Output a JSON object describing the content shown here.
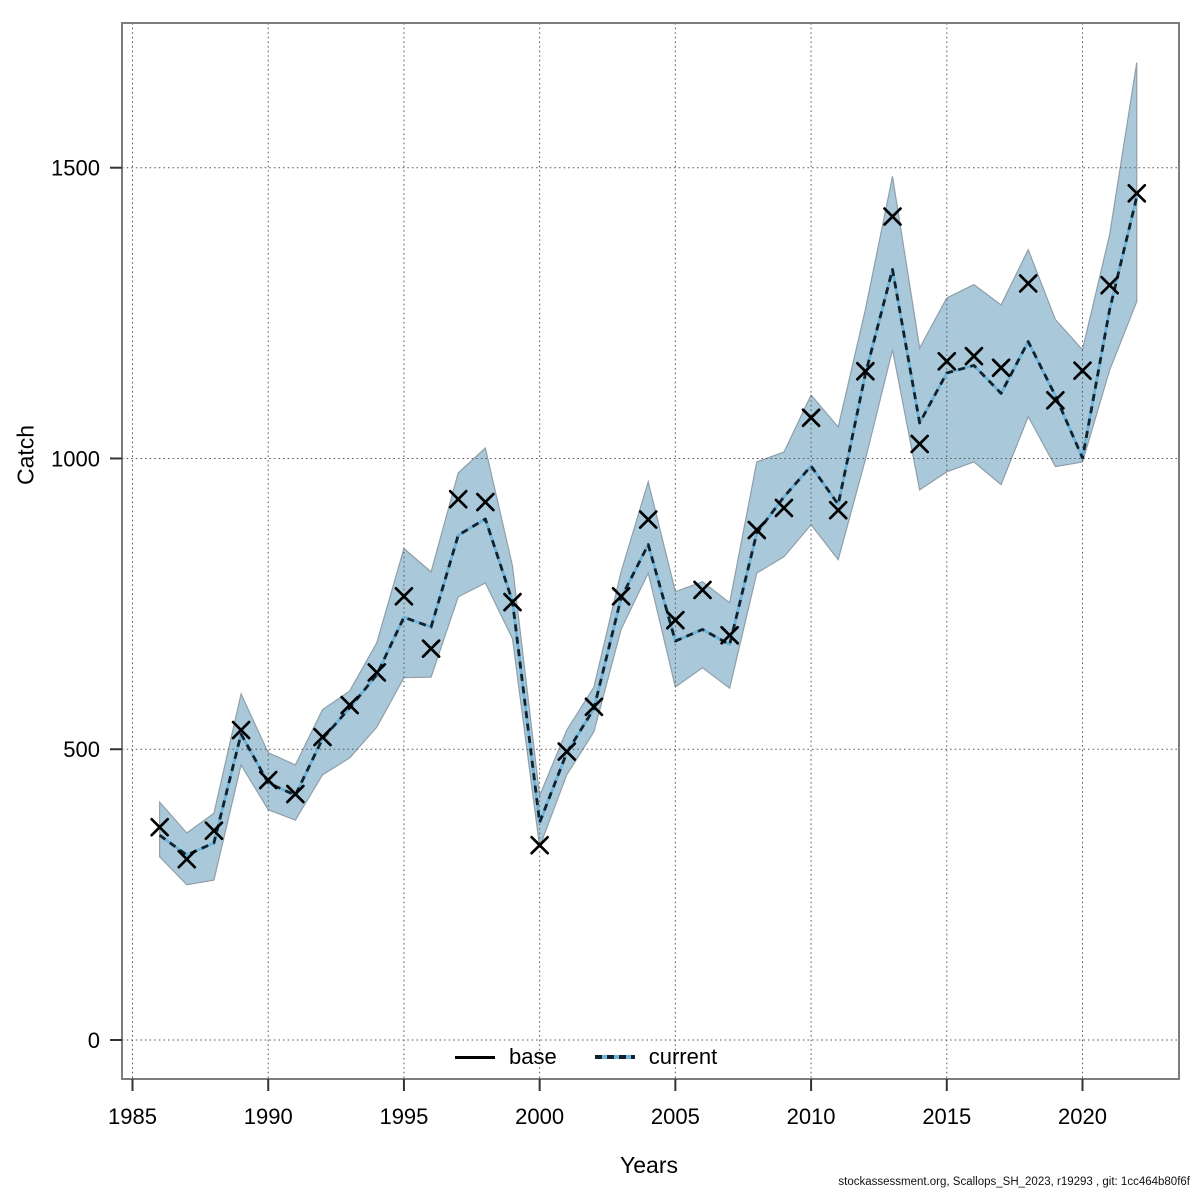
{
  "footer": "stockassessment.org, Scallops_SH_2023, r19293 , git: 1cc464b80f6f",
  "legend": {
    "position": "bottom-center",
    "items": [
      {
        "label": "base",
        "line_style": "solid",
        "color": "#000000"
      },
      {
        "label": "current",
        "line_style": "dotted",
        "color": "#6fb4d9"
      }
    ]
  },
  "chart_data": {
    "type": "line",
    "title": "",
    "xlabel": "Years",
    "ylabel": "Catch",
    "grid": true,
    "x_ticks": [
      1985,
      1990,
      1995,
      2000,
      2005,
      2010,
      2015,
      2020
    ],
    "y_ticks": [
      0,
      500,
      1000,
      1500
    ],
    "xlim": [
      1984.6,
      2023.6
    ],
    "ylim": [
      -67,
      1750
    ],
    "x": [
      1986,
      1987,
      1988,
      1989,
      1990,
      1991,
      1992,
      1993,
      1994,
      1995,
      1996,
      1997,
      1998,
      1999,
      2000,
      2001,
      2002,
      2003,
      2004,
      2005,
      2006,
      2007,
      2008,
      2009,
      2010,
      2011,
      2012,
      2013,
      2014,
      2015,
      2016,
      2017,
      2018,
      2019,
      2020,
      2021,
      2022
    ],
    "series": [
      {
        "name": "base",
        "style": "x-markers",
        "color": "#000000",
        "values": [
          366,
          311,
          360,
          533,
          447,
          423,
          521,
          576,
          632,
          763,
          673,
          930,
          925,
          753,
          335,
          496,
          573,
          763,
          895,
          722,
          774,
          696,
          877,
          915,
          1070,
          911,
          1150,
          1416,
          1025,
          1167,
          1176,
          1156,
          1301,
          1100,
          1151,
          1298,
          1456
        ]
      },
      {
        "name": "current",
        "style": "dashed-line",
        "color": "#6fb4d9",
        "dash_color": "#10222e",
        "values": [
          352,
          318,
          339,
          526,
          442,
          421,
          518,
          571,
          628,
          727,
          710,
          868,
          896,
          754,
          374,
          494,
          570,
          760,
          852,
          686,
          706,
          680,
          872,
          934,
          987,
          921,
          1145,
          1325,
          1061,
          1147,
          1160,
          1112,
          1201,
          1108,
          1001,
          1256,
          1450
        ]
      }
    ],
    "band": {
      "series": "current",
      "fill": "#a9c8d9",
      "edge": "#909fa9",
      "lower": [
        315,
        267,
        275,
        473,
        396,
        378,
        456,
        485,
        538,
        623,
        624,
        762,
        786,
        690,
        332,
        456,
        530,
        706,
        803,
        607,
        640,
        605,
        803,
        831,
        886,
        826,
        998,
        1187,
        946,
        977,
        994,
        955,
        1072,
        986,
        994,
        1152,
        1270
      ],
      "upper": [
        409,
        356,
        390,
        595,
        494,
        473,
        568,
        600,
        683,
        845,
        805,
        975,
        1018,
        815,
        420,
        533,
        607,
        805,
        960,
        771,
        788,
        752,
        994,
        1011,
        1109,
        1054,
        1256,
        1485,
        1190,
        1276,
        1299,
        1264,
        1359,
        1239,
        1187,
        1385,
        1681
      ]
    },
    "colors": {
      "grid": "#5a5a5a",
      "border": "#7d7d7d",
      "tick": "#333333",
      "marker": "#000000"
    }
  }
}
